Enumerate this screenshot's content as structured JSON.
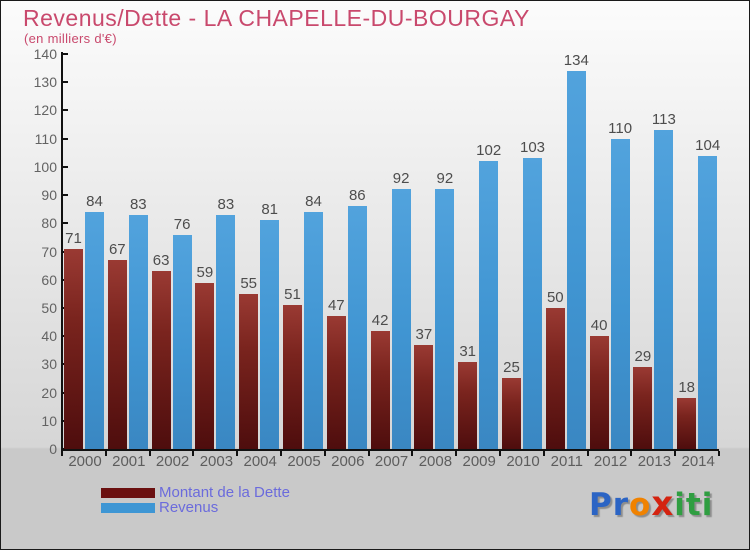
{
  "header": {
    "title": "Revenus/Dette - LA CHAPELLE-DU-BOURGAY",
    "subtitle": "(en milliers d'€)"
  },
  "chart_data": {
    "type": "bar",
    "title": "Revenus/Dette - LA CHAPELLE-DU-BOURGAY",
    "subtitle": "(en milliers d'€)",
    "categories": [
      "2000",
      "2001",
      "2002",
      "2003",
      "2004",
      "2005",
      "2006",
      "2007",
      "2008",
      "2009",
      "2010",
      "2011",
      "2012",
      "2013",
      "2014"
    ],
    "series": [
      {
        "name": "Montant de la Dette",
        "color": "#7a241e",
        "values": [
          71,
          67,
          63,
          59,
          55,
          51,
          47,
          42,
          37,
          31,
          25,
          50,
          40,
          29,
          18
        ]
      },
      {
        "name": "Revenus",
        "color": "#4095d2",
        "values": [
          84,
          83,
          76,
          83,
          81,
          84,
          86,
          92,
          92,
          102,
          103,
          134,
          110,
          113,
          104
        ]
      }
    ],
    "xlabel": "",
    "ylabel": "",
    "ylim": [
      0,
      140
    ],
    "ytick_step": 10,
    "grid": false,
    "legend_position": "bottom-left",
    "value_labels_shown": true
  },
  "legend": {
    "items": [
      {
        "label": "Montant de la Dette",
        "color": "#6b1010"
      },
      {
        "label": "Revenus",
        "color": "#3e96d4"
      }
    ],
    "text_color": "#6b6bdc"
  },
  "logo": {
    "name": "proxiti-logo",
    "letters": [
      {
        "char": "P",
        "color": "#2b64c4"
      },
      {
        "char": "r",
        "color": "#2b64c4"
      },
      {
        "char": "o",
        "color": "#f08200"
      },
      {
        "char": "x",
        "color": "#d42310"
      },
      {
        "char": "i",
        "color": "#2f9e41"
      },
      {
        "char": "t",
        "color": "#2f9e41"
      },
      {
        "char": "i",
        "color": "#2f9e41"
      }
    ]
  },
  "colors": {
    "title": "#c9496d",
    "axis": "#111111",
    "tick_label": "#636363",
    "value_label": "#4d4d4d",
    "background_top": "#fcfcfc",
    "background_bottom": "#c9c9c9"
  }
}
